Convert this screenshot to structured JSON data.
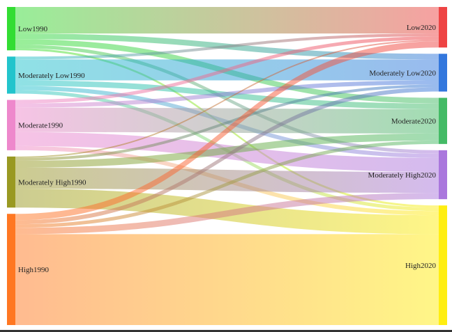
{
  "chart_data": {
    "type": "sankey",
    "nodes_left": [
      {
        "name": "Low1990",
        "color": "#33dd33"
      },
      {
        "name": "Moderately Low1990",
        "color": "#22c4cc"
      },
      {
        "name": "Moderate1990",
        "color": "#ee88cc"
      },
      {
        "name": "Moderately High1990",
        "color": "#999922"
      },
      {
        "name": "High1990",
        "color": "#ff7722"
      }
    ],
    "nodes_right": [
      {
        "name": "Low2020",
        "color": "#ee4444"
      },
      {
        "name": "Moderately Low2020",
        "color": "#3377dd"
      },
      {
        "name": "Moderate2020",
        "color": "#44bb66"
      },
      {
        "name": "Moderately High2020",
        "color": "#aa77dd"
      },
      {
        "name": "High2020",
        "color": "#ffee11"
      }
    ],
    "flows": [
      [
        38,
        8,
        8,
        5,
        3
      ],
      [
        4,
        30,
        8,
        6,
        5
      ],
      [
        5,
        6,
        35,
        20,
        6
      ],
      [
        2,
        4,
        10,
        30,
        27
      ],
      [
        9,
        6,
        5,
        9,
        130
      ]
    ],
    "link_opacity": 0.5
  }
}
